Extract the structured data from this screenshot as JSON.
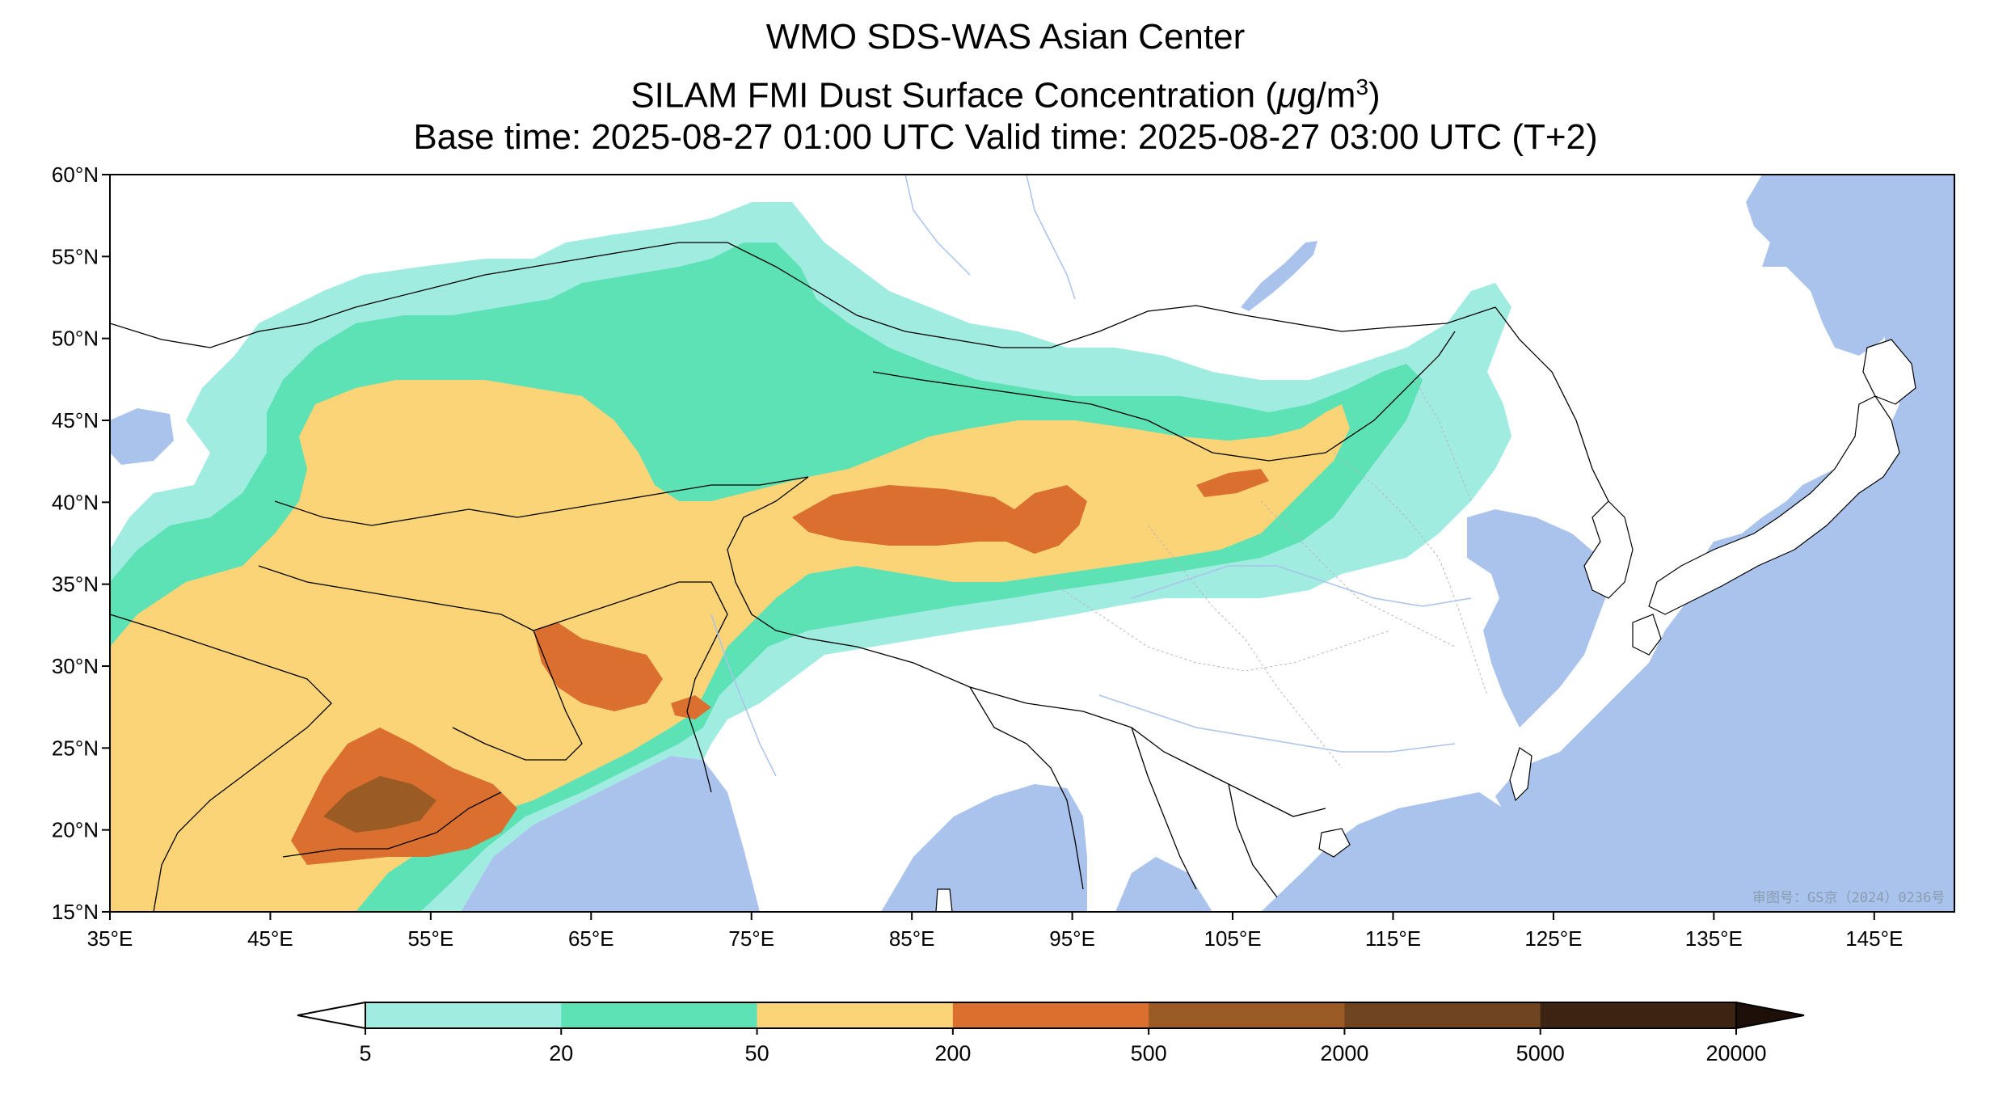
{
  "title": {
    "line1": "WMO SDS-WAS Asian Center",
    "line2_prefix": "SILAM FMI Dust Surface Concentration (",
    "line2_unit_mu": "μ",
    "line2_unit_rest": "g/m",
    "line2_unit_sup": "3",
    "line2_suffix": ")",
    "line3": "Base time: 2025-08-27 01:00 UTC Valid time: 2025-08-27 03:00 UTC (T+2)"
  },
  "map": {
    "lon_range": [
      35,
      150
    ],
    "lat_range": [
      15,
      60
    ],
    "lon_ticks": [
      "35°E",
      "45°E",
      "55°E",
      "65°E",
      "75°E",
      "85°E",
      "95°E",
      "105°E",
      "115°E",
      "125°E",
      "135°E",
      "145°E"
    ],
    "lat_ticks": [
      "60°N",
      "55°N",
      "50°N",
      "45°N",
      "40°N",
      "35°N",
      "30°N",
      "25°N",
      "20°N",
      "15°N"
    ],
    "ocean_color": "#a9c3ec",
    "land_color": "#ffffff",
    "watermark": "审图号：GS京（2024）0236号"
  },
  "colorbar": {
    "levels": [
      "5",
      "20",
      "50",
      "200",
      "500",
      "2000",
      "5000",
      "20000"
    ],
    "colors": [
      "#a1ece1",
      "#5de2b6",
      "#fad476",
      "#db6f2f",
      "#9a5b25",
      "#6e4520",
      "#3d2412"
    ],
    "extend": "both"
  }
}
